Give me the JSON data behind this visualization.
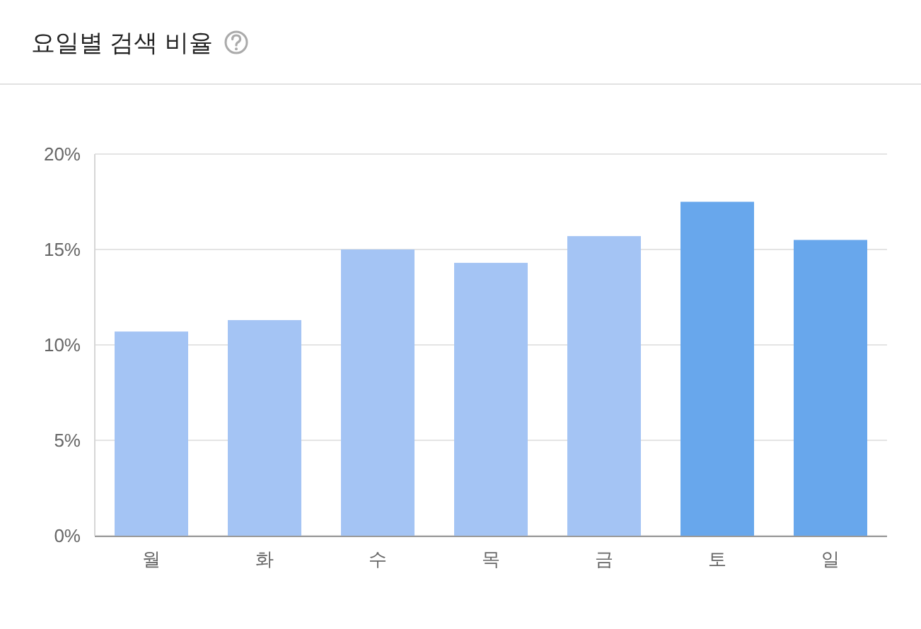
{
  "chart_data": {
    "type": "bar",
    "title": "요일별 검색 비율",
    "categories": [
      "월",
      "화",
      "수",
      "목",
      "금",
      "토",
      "일"
    ],
    "values": [
      10.7,
      11.3,
      15.0,
      14.3,
      15.7,
      17.5,
      15.5
    ],
    "colors": [
      "#a4c4f4",
      "#a4c4f4",
      "#a4c4f4",
      "#a4c4f4",
      "#a4c4f4",
      "#68a7ec",
      "#68a7ec"
    ],
    "ylim": [
      0,
      20
    ],
    "yticks": [
      {
        "value": 0,
        "label": "0%"
      },
      {
        "value": 5,
        "label": "5%"
      },
      {
        "value": 10,
        "label": "10%"
      },
      {
        "value": 15,
        "label": "15%"
      },
      {
        "value": 20,
        "label": "20%"
      }
    ],
    "grid": "y"
  }
}
